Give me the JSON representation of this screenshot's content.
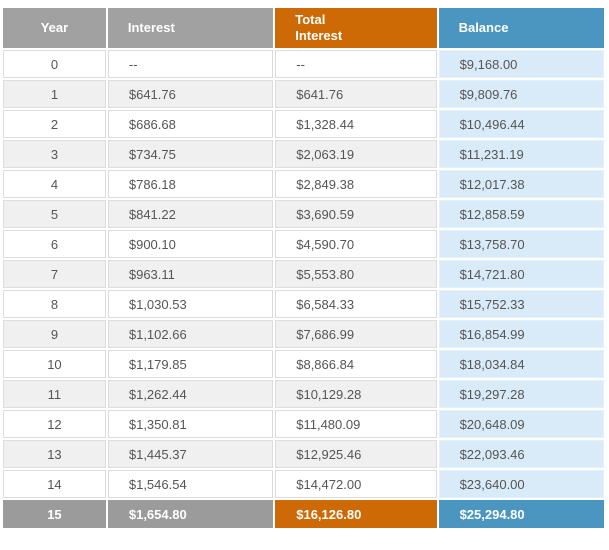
{
  "colors": {
    "header_gray": "#a1a1a1",
    "footer_gray": "#9b9b9b",
    "orange": "#cd6a06",
    "blue": "#4a96c1",
    "balance_cell_light_blue": "#d9ebf9",
    "stripe_gray": "#f0f0f0",
    "cell_text": "#555555"
  },
  "table": {
    "columns": [
      {
        "key": "year",
        "label": "Year"
      },
      {
        "key": "interest",
        "label": "Interest"
      },
      {
        "key": "total_interest",
        "label": "Total\nInterest"
      },
      {
        "key": "balance",
        "label": "Balance"
      }
    ],
    "rows": [
      {
        "year": "0",
        "interest": "--",
        "total_interest": "--",
        "balance": "$9,168.00",
        "is_total_row": false
      },
      {
        "year": "1",
        "interest": "$641.76",
        "total_interest": "$641.76",
        "balance": "$9,809.76",
        "is_total_row": false
      },
      {
        "year": "2",
        "interest": "$686.68",
        "total_interest": "$1,328.44",
        "balance": "$10,496.44",
        "is_total_row": false
      },
      {
        "year": "3",
        "interest": "$734.75",
        "total_interest": "$2,063.19",
        "balance": "$11,231.19",
        "is_total_row": false
      },
      {
        "year": "4",
        "interest": "$786.18",
        "total_interest": "$2,849.38",
        "balance": "$12,017.38",
        "is_total_row": false
      },
      {
        "year": "5",
        "interest": "$841.22",
        "total_interest": "$3,690.59",
        "balance": "$12,858.59",
        "is_total_row": false
      },
      {
        "year": "6",
        "interest": "$900.10",
        "total_interest": "$4,590.70",
        "balance": "$13,758.70",
        "is_total_row": false
      },
      {
        "year": "7",
        "interest": "$963.11",
        "total_interest": "$5,553.80",
        "balance": "$14,721.80",
        "is_total_row": false
      },
      {
        "year": "8",
        "interest": "$1,030.53",
        "total_interest": "$6,584.33",
        "balance": "$15,752.33",
        "is_total_row": false
      },
      {
        "year": "9",
        "interest": "$1,102.66",
        "total_interest": "$7,686.99",
        "balance": "$16,854.99",
        "is_total_row": false
      },
      {
        "year": "10",
        "interest": "$1,179.85",
        "total_interest": "$8,866.84",
        "balance": "$18,034.84",
        "is_total_row": false
      },
      {
        "year": "11",
        "interest": "$1,262.44",
        "total_interest": "$10,129.28",
        "balance": "$19,297.28",
        "is_total_row": false
      },
      {
        "year": "12",
        "interest": "$1,350.81",
        "total_interest": "$11,480.09",
        "balance": "$20,648.09",
        "is_total_row": false
      },
      {
        "year": "13",
        "interest": "$1,445.37",
        "total_interest": "$12,925.46",
        "balance": "$22,093.46",
        "is_total_row": false
      },
      {
        "year": "14",
        "interest": "$1,546.54",
        "total_interest": "$14,472.00",
        "balance": "$23,640.00",
        "is_total_row": false
      },
      {
        "year": "15",
        "interest": "$1,654.80",
        "total_interest": "$16,126.80",
        "balance": "$25,294.80",
        "is_total_row": true
      }
    ]
  }
}
